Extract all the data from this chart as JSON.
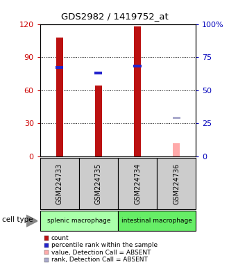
{
  "title": "GDS2982 / 1419752_at",
  "samples": [
    "GSM224733",
    "GSM224735",
    "GSM224734",
    "GSM224736"
  ],
  "cell_types": [
    {
      "label": "splenic macrophage",
      "span": [
        0,
        1
      ],
      "color": "#aaffaa"
    },
    {
      "label": "intestinal macrophage",
      "span": [
        2,
        3
      ],
      "color": "#66ee66"
    }
  ],
  "count_values": [
    108,
    64,
    118,
    0
  ],
  "absent_value": [
    0,
    0,
    0,
    12
  ],
  "absent_value_color": "#ffaaaa",
  "percentile_values": [
    67,
    63,
    68,
    0
  ],
  "absent_rank_value": [
    0,
    0,
    0,
    29
  ],
  "absent_rank_color": "#aaaacc",
  "ylim_left": [
    0,
    120
  ],
  "ylim_right": [
    0,
    100
  ],
  "yticks_left": [
    0,
    30,
    60,
    90,
    120
  ],
  "yticks_right": [
    0,
    25,
    50,
    75,
    100
  ],
  "ytick_labels_left": [
    "0",
    "30",
    "60",
    "90",
    "120"
  ],
  "ytick_labels_right": [
    "0",
    "25",
    "50",
    "75",
    "100%"
  ],
  "left_axis_color": "#cc0000",
  "right_axis_color": "#0000bb",
  "red_bar_color": "#bb1111",
  "blue_mark_color": "#2222cc",
  "bar_width": 0.18,
  "bg_color": "#ffffff",
  "sample_box_color": "#cccccc",
  "legend_items": [
    {
      "color": "#bb1111",
      "label": "count"
    },
    {
      "color": "#2222cc",
      "label": "percentile rank within the sample"
    },
    {
      "color": "#ffaaaa",
      "label": "value, Detection Call = ABSENT"
    },
    {
      "color": "#aaaacc",
      "label": "rank, Detection Call = ABSENT"
    }
  ]
}
